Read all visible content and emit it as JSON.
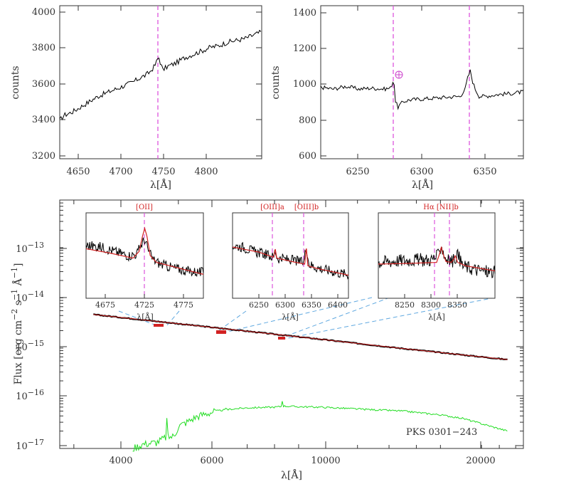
{
  "chart_data": [
    {
      "type": "line",
      "id": "top-left",
      "xlim": [
        4605,
        4840
      ],
      "ylim": [
        3150,
        4030
      ],
      "x_ticks": [
        4650,
        4700,
        4750,
        4800
      ],
      "x_tick_labels": [
        "4650",
        "4700",
        "4750",
        "4800"
      ],
      "y_ticks": [
        3200,
        3400,
        3600,
        3800,
        4000
      ],
      "y_tick_labels": [
        "3200",
        "3400",
        "3600",
        "3800",
        "4000"
      ],
      "xlabel": "λ[Å]",
      "ylabel": "counts",
      "vlines": [
        4720
      ],
      "series": [
        {
          "line_color": "#000000",
          "x": [
            4605,
            4610,
            4620,
            4630,
            4640,
            4650,
            4660,
            4670,
            4680,
            4690,
            4700,
            4705,
            4710,
            4715,
            4718,
            4720,
            4722,
            4725,
            4730,
            4740,
            4750,
            4760,
            4770,
            4780,
            4790,
            4800,
            4810,
            4820,
            4830,
            4840
          ],
          "y": [
            3370,
            3400,
            3420,
            3450,
            3480,
            3510,
            3530,
            3550,
            3570,
            3590,
            3620,
            3630,
            3650,
            3680,
            3710,
            3740,
            3705,
            3660,
            3680,
            3700,
            3730,
            3750,
            3770,
            3790,
            3800,
            3820,
            3830,
            3840,
            3860,
            3880
          ]
        }
      ]
    },
    {
      "type": "line",
      "id": "top-right",
      "xlim": [
        6220,
        6380
      ],
      "ylim": [
        575,
        1420
      ],
      "x_ticks": [
        6250,
        6300,
        6350
      ],
      "x_tick_labels": [
        "6250",
        "6300",
        "6350"
      ],
      "y_ticks": [
        600,
        800,
        1000,
        1200,
        1400
      ],
      "y_tick_labels": [
        "600",
        "800",
        "1000",
        "1200",
        "1400"
      ],
      "xlabel": "λ[Å]",
      "ylabel": "counts",
      "vlines": [
        6278,
        6338
      ],
      "annotations": [
        {
          "text": "⊕",
          "x": 6283,
          "y": 1048,
          "color": "#cc44cc"
        }
      ],
      "series": [
        {
          "line_color": "#000000",
          "x": [
            6220,
            6230,
            6240,
            6250,
            6260,
            6270,
            6275,
            6277,
            6278,
            6279,
            6281,
            6285,
            6290,
            6300,
            6310,
            6320,
            6330,
            6334,
            6336,
            6338,
            6340,
            6342,
            6345,
            6350,
            6360,
            6370,
            6380
          ],
          "y": [
            970,
            960,
            975,
            960,
            965,
            960,
            965,
            1000,
            990,
            890,
            860,
            890,
            900,
            905,
            910,
            915,
            920,
            960,
            1020,
            1060,
            1000,
            960,
            920,
            920,
            930,
            935,
            945
          ]
        }
      ]
    },
    {
      "type": "line",
      "id": "main",
      "xscale": "log",
      "yscale": "log",
      "xlim": [
        2800,
        27000
      ],
      "ylim": [
        9e-18,
        8e-13
      ],
      "x_ticks": [
        4000,
        6000,
        10000,
        20000
      ],
      "x_tick_labels": [
        "4000",
        "6000",
        "10000",
        "20000"
      ],
      "y_ticks": [
        1e-17,
        1e-16,
        1e-15,
        1e-14,
        1e-13
      ],
      "y_tick_base": "10",
      "y_tick_exponents": [
        "−17",
        "−16",
        "−15",
        "−14",
        "−13"
      ],
      "xlabel": "λ[Å]",
      "ylabel": "Flux [erg cm",
      "ylabel_sup1": "−2",
      "ylabel_mid1": " s",
      "ylabel_sup2": "−1",
      "ylabel_mid2": " Å",
      "ylabel_sup3": "−1",
      "ylabel_end": "]",
      "source_name": "PKS 0301−243",
      "series": [
        {
          "line_color": "#000000",
          "x": [
            3300,
            5000,
            7000,
            10000,
            15000,
            20000,
            25000
          ],
          "y": [
            4.2e-15,
            2.75e-15,
            1.95e-15,
            1.35e-15,
            8.8e-16,
            6.6e-16,
            5.3e-16
          ]
        },
        {
          "line_color": "#d22222",
          "x": [
            3300,
            5000,
            7000,
            10000,
            15000,
            20000,
            25000
          ],
          "y": [
            4.2e-15,
            2.75e-15,
            1.95e-15,
            1.35e-15,
            8.8e-16,
            6.6e-16,
            5.3e-16
          ]
        },
        {
          "line_color": "#22dd22",
          "x": [
            4000,
            4200,
            4500,
            4700,
            4718,
            4720,
            4722,
            4750,
            4900,
            5000,
            5200,
            5500,
            6000,
            6300,
            6330,
            6340,
            6350,
            6500,
            7000,
            8000,
            8300,
            8320,
            8340,
            9000,
            10000,
            12000,
            15000,
            18000,
            20000,
            22000,
            25000
          ],
          "y": [
            9e-18,
            1.1e-17,
            1.2e-17,
            1.5e-17,
            5e-17,
            1.2e-16,
            4e-17,
            1.5e-17,
            1.6e-17,
            2.5e-17,
            3e-17,
            4e-17,
            5e-17,
            5.3e-17,
            7.5e-17,
            5.5e-17,
            5.3e-17,
            5.5e-17,
            5.8e-17,
            6e-17,
            6.2e-17,
            1.1e-16,
            6.3e-17,
            6.1e-17,
            6e-17,
            5.5e-17,
            5e-17,
            4.2e-17,
            3.6e-17,
            2.8e-17,
            2e-17
          ]
        }
      ]
    },
    {
      "type": "line",
      "id": "inset-1",
      "xlim": [
        4650,
        4800
      ],
      "x_ticks": [
        4675,
        4725,
        4775
      ],
      "x_tick_labels": [
        "4675",
        "4725",
        "4775"
      ],
      "xlabel": "λ[Å]",
      "line_labels": [
        {
          "text": "[OII]",
          "x": 4725
        }
      ],
      "vlines": [
        4725
      ],
      "series": [
        {
          "line_color": "#000000",
          "x": [
            4650,
            4670,
            4690,
            4705,
            4715,
            4720,
            4725,
            4730,
            4735,
            4745,
            4760,
            4780,
            4800
          ],
          "y": [
            0.62,
            0.6,
            0.54,
            0.5,
            0.52,
            0.62,
            0.69,
            0.55,
            0.46,
            0.4,
            0.36,
            0.32,
            0.3
          ]
        },
        {
          "line_color": "#d22222",
          "x": [
            4650,
            4680,
            4710,
            4718,
            4722,
            4725,
            4728,
            4732,
            4740,
            4770,
            4800
          ],
          "y": [
            0.58,
            0.53,
            0.47,
            0.55,
            0.72,
            0.82,
            0.72,
            0.5,
            0.42,
            0.35,
            0.28
          ]
        }
      ]
    },
    {
      "type": "line",
      "id": "inset-2",
      "xlim": [
        6200,
        6420
      ],
      "x_ticks": [
        6250,
        6300,
        6350,
        6400
      ],
      "x_tick_labels": [
        "6250",
        "6300",
        "6350",
        "6400"
      ],
      "xlabel": "λ[Å]",
      "line_labels": [
        {
          "text": "[OIII]a",
          "x": 6280
        },
        {
          "text": "[OIII]b",
          "x": 6340
        }
      ],
      "vlines": [
        6280,
        6340
      ],
      "series": [
        {
          "line_color": "#000000",
          "x": [
            6200,
            6220,
            6240,
            6260,
            6278,
            6281,
            6285,
            6300,
            6320,
            6335,
            6340,
            6345,
            6360,
            6380,
            6400,
            6420
          ],
          "y": [
            0.62,
            0.6,
            0.55,
            0.52,
            0.48,
            0.56,
            0.47,
            0.46,
            0.44,
            0.42,
            0.62,
            0.4,
            0.36,
            0.33,
            0.3,
            0.28
          ]
        },
        {
          "line_color": "#d22222",
          "x": [
            6200,
            6250,
            6278,
            6281,
            6284,
            6320,
            6337,
            6340,
            6343,
            6360,
            6420
          ],
          "y": [
            0.6,
            0.54,
            0.48,
            0.58,
            0.47,
            0.42,
            0.4,
            0.6,
            0.38,
            0.35,
            0.27
          ]
        }
      ]
    },
    {
      "type": "line",
      "id": "inset-3",
      "xlim": [
        8200,
        8400
      ],
      "x_ticks": [
        8250,
        8300,
        8350
      ],
      "x_tick_labels": [
        "8250",
        "8300",
        "8350"
      ],
      "xlabel": "λ[Å]",
      "line_labels": [
        {
          "text": "Hα [NII]b",
          "x": 8320
        }
      ],
      "vlines": [
        8308,
        8332
      ],
      "series": [
        {
          "line_color": "#000000",
          "x": [
            8200,
            8230,
            8260,
            8290,
            8303,
            8308,
            8313,
            8320,
            8330,
            8335,
            8345,
            8370,
            8400
          ],
          "y": [
            0.42,
            0.44,
            0.45,
            0.45,
            0.5,
            0.63,
            0.5,
            0.44,
            0.44,
            0.52,
            0.38,
            0.33,
            0.3
          ]
        },
        {
          "line_color": "#d22222",
          "x": [
            8200,
            8260,
            8300,
            8305,
            8308,
            8311,
            8316,
            8325,
            8330,
            8332,
            8336,
            8350,
            8400
          ],
          "y": [
            0.4,
            0.41,
            0.42,
            0.52,
            0.6,
            0.52,
            0.43,
            0.42,
            0.46,
            0.5,
            0.42,
            0.38,
            0.32
          ]
        }
      ]
    }
  ]
}
